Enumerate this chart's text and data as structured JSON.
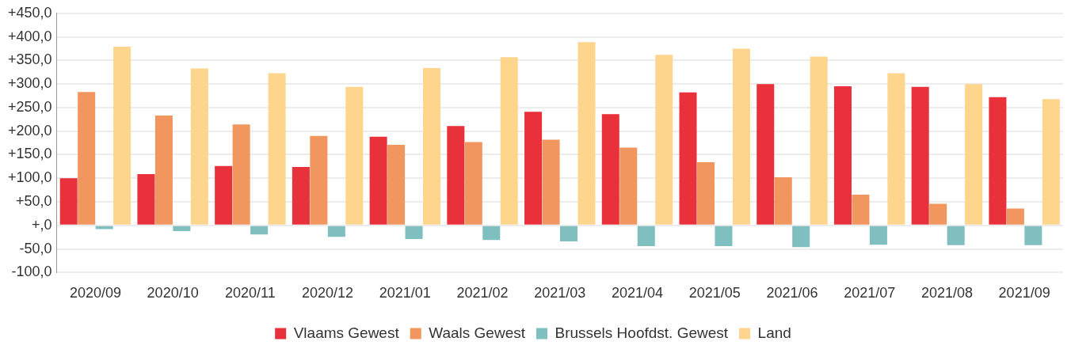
{
  "chart_data": {
    "type": "bar",
    "categories": [
      "2020/09",
      "2020/10",
      "2020/11",
      "2020/12",
      "2021/01",
      "2021/02",
      "2021/03",
      "2021/04",
      "2021/05",
      "2021/06",
      "2021/07",
      "2021/08",
      "2021/09"
    ],
    "series": [
      {
        "name": "Vlaams Gewest",
        "color": "#e8313a",
        "values": [
          100,
          109,
          126,
          124,
          188,
          211,
          241,
          236,
          282,
          300,
          295,
          294,
          272
        ]
      },
      {
        "name": "Waals Gewest",
        "color": "#f0965e",
        "values": [
          283,
          233,
          214,
          190,
          171,
          177,
          182,
          165,
          134,
          102,
          65,
          46,
          36
        ]
      },
      {
        "name": "Brussels Hoofdst. Gewest",
        "color": "#7fbfbf",
        "values": [
          -8,
          -12,
          -19,
          -24,
          -29,
          -31,
          -34,
          -44,
          -44,
          -46,
          -41,
          -42,
          -42
        ]
      },
      {
        "name": "Land",
        "color": "#fdd58d",
        "values": [
          379,
          333,
          323,
          294,
          334,
          357,
          389,
          362,
          375,
          358,
          323,
          300,
          268
        ]
      }
    ],
    "ylim": [
      -100,
      450
    ],
    "yticks": [
      {
        "value": -100,
        "label": "-100,0"
      },
      {
        "value": -50,
        "label": "-50,0"
      },
      {
        "value": 0,
        "label": "+,0"
      },
      {
        "value": 50,
        "label": "+50,0"
      },
      {
        "value": 100,
        "label": "+100,0"
      },
      {
        "value": 150,
        "label": "+150,0"
      },
      {
        "value": 200,
        "label": "+200,0"
      },
      {
        "value": 250,
        "label": "+250,0"
      },
      {
        "value": 300,
        "label": "+300,0"
      },
      {
        "value": 350,
        "label": "+350,0"
      },
      {
        "value": 400,
        "label": "+400,0"
      },
      {
        "value": 450,
        "label": "+450,0"
      }
    ],
    "grid": "y",
    "legend": "bottom"
  }
}
